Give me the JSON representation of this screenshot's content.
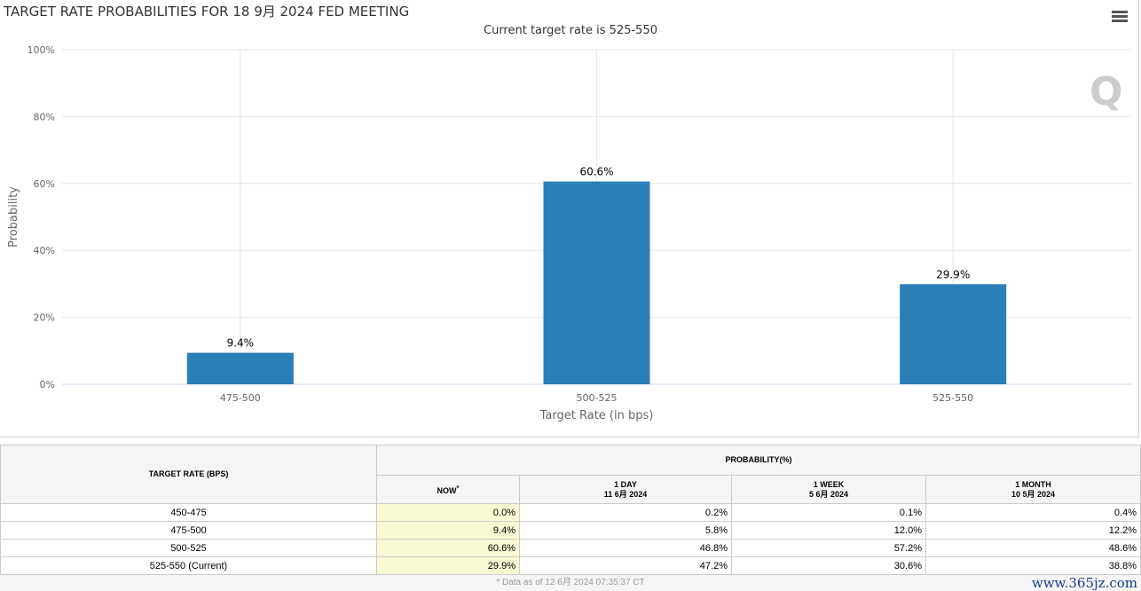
{
  "chart_data": {
    "type": "bar",
    "title": "TARGET RATE PROBABILITIES FOR 18 9月 2024 FED MEETING",
    "subtitle": "Current target rate is 525-550",
    "categories": [
      "475-500",
      "500-525",
      "525-550"
    ],
    "values": [
      9.4,
      60.6,
      29.9
    ],
    "data_labels": [
      "9.4%",
      "60.6%",
      "29.9%"
    ],
    "xlabel": "Target Rate (in bps)",
    "ylabel": "Probability",
    "ylim": [
      0,
      100
    ],
    "yticks": [
      "0%",
      "20%",
      "40%",
      "60%",
      "80%",
      "100%"
    ],
    "bar_color": "#2a7fb8",
    "grid": true
  },
  "table": {
    "col_rate": "TARGET RATE (BPS)",
    "col_prob": "PROBABILITY(%)",
    "sub": [
      {
        "l1": "NOW",
        "l2": "",
        "sup": "*"
      },
      {
        "l1": "1 DAY",
        "l2": "11 6月 2024"
      },
      {
        "l1": "1 WEEK",
        "l2": "5 6月 2024"
      },
      {
        "l1": "1 MONTH",
        "l2": "10 5月 2024"
      }
    ],
    "rows": [
      {
        "rate": "450-475",
        "v": [
          "0.0%",
          "0.2%",
          "0.1%",
          "0.4%"
        ]
      },
      {
        "rate": "475-500",
        "v": [
          "9.4%",
          "5.8%",
          "12.0%",
          "12.2%"
        ]
      },
      {
        "rate": "500-525",
        "v": [
          "60.6%",
          "46.8%",
          "57.2%",
          "48.6%"
        ]
      },
      {
        "rate": "525-550 (Current)",
        "v": [
          "29.9%",
          "47.2%",
          "30.6%",
          "38.8%"
        ]
      }
    ],
    "footnote": "* Data as of 12 6月 2024 07:35:37 CT"
  },
  "watermark": "www.365jz.com"
}
